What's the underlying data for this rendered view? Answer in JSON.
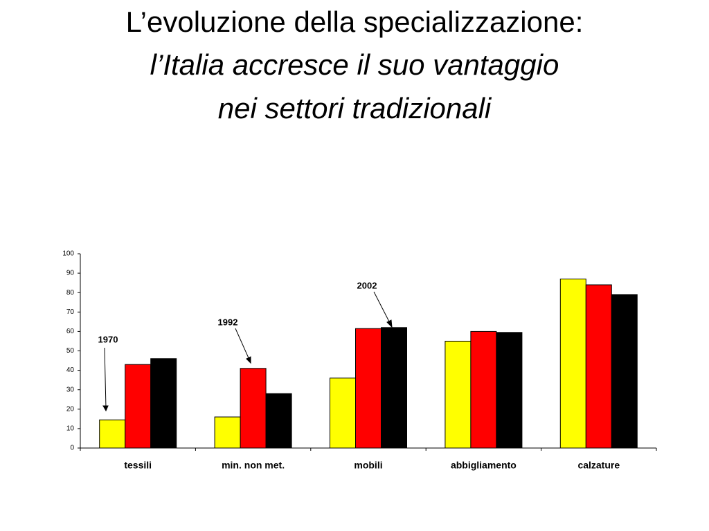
{
  "chart_data": {
    "type": "bar",
    "title": "L’evoluzione della specializzazione:",
    "subtitle": [
      "l’Italia accresce il suo vantaggio",
      "nei settori tradizionali"
    ],
    "categories": [
      "tessili",
      "min. non met.",
      "mobili",
      "abbigliamento",
      "calzature"
    ],
    "series": [
      {
        "name": "1970",
        "color": "#ffff00",
        "values": [
          14.5,
          16,
          36,
          55,
          87
        ]
      },
      {
        "name": "1992",
        "color": "#ff0000",
        "values": [
          43,
          41,
          61.5,
          60,
          84
        ]
      },
      {
        "name": "2002",
        "color": "#000000",
        "values": [
          46,
          28,
          62,
          59.5,
          79
        ]
      }
    ],
    "ylim": [
      0,
      100
    ],
    "yticks": [
      0,
      10,
      20,
      30,
      40,
      50,
      60,
      70,
      80,
      90,
      100
    ],
    "grid": false
  }
}
